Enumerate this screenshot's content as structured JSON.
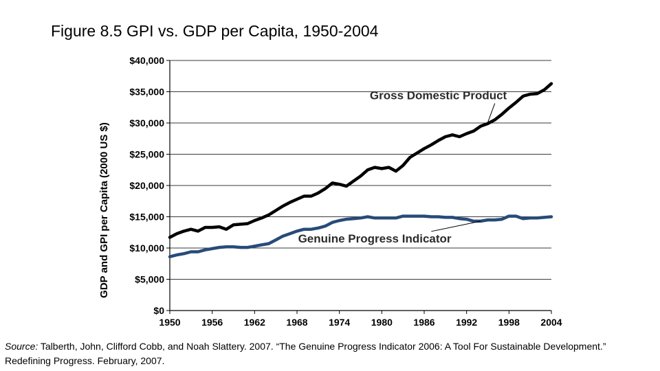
{
  "title": "Figure 8.5 GPI vs. GDP per Capita, 1950-2004",
  "source": {
    "label": "Source:",
    "text": " Talberth, John, Clifford Cobb, and Noah Slattery. 2007. “The Genuine Progress Indicator 2006: A Tool For Sustainable Development.” Redefining Progress. February, 2007."
  },
  "chart_data": {
    "type": "line",
    "title": "",
    "xlabel": "",
    "ylabel": "GDP and GPI per Capita (2000 US $)",
    "xlim": [
      1950,
      2004
    ],
    "ylim": [
      0,
      40000
    ],
    "grid": true,
    "x_ticks": [
      1950,
      1956,
      1962,
      1968,
      1974,
      1980,
      1986,
      1992,
      1998,
      2004
    ],
    "y_ticks": [
      {
        "value": 0,
        "label": "$0"
      },
      {
        "value": 5000,
        "label": "$5,000"
      },
      {
        "value": 10000,
        "label": "$10,000"
      },
      {
        "value": 15000,
        "label": "$15,000"
      },
      {
        "value": 20000,
        "label": "$20,000"
      },
      {
        "value": 25000,
        "label": "$25,000"
      },
      {
        "value": 30000,
        "label": "$30,000"
      },
      {
        "value": 35000,
        "label": "$35,000"
      },
      {
        "value": 40000,
        "label": "$40,000"
      }
    ],
    "x": [
      1950,
      1951,
      1952,
      1953,
      1954,
      1955,
      1956,
      1957,
      1958,
      1959,
      1960,
      1961,
      1962,
      1963,
      1964,
      1965,
      1966,
      1967,
      1968,
      1969,
      1970,
      1971,
      1972,
      1973,
      1974,
      1975,
      1976,
      1977,
      1978,
      1979,
      1980,
      1981,
      1982,
      1983,
      1984,
      1985,
      1986,
      1987,
      1988,
      1989,
      1990,
      1991,
      1992,
      1993,
      1994,
      1995,
      1996,
      1997,
      1998,
      1999,
      2000,
      2001,
      2002,
      2003,
      2004
    ],
    "series": [
      {
        "name": "Gross Domestic Product",
        "color": "#000000",
        "values": [
          11700,
          12300,
          12700,
          13000,
          12700,
          13300,
          13300,
          13400,
          13000,
          13700,
          13800,
          13900,
          14400,
          14800,
          15300,
          16000,
          16700,
          17300,
          17800,
          18300,
          18300,
          18800,
          19500,
          20400,
          20200,
          19900,
          20700,
          21500,
          22500,
          22900,
          22700,
          22900,
          22300,
          23200,
          24500,
          25200,
          25900,
          26500,
          27200,
          27800,
          28100,
          27800,
          28300,
          28700,
          29500,
          29900,
          30500,
          31400,
          32400,
          33300,
          34300,
          34600,
          34700,
          35300,
          36300
        ],
        "label_position": {
          "year": 1988,
          "value": 33800
        },
        "leader_to": {
          "year": 1995,
          "value": 30100
        }
      },
      {
        "name": "Genuine Progress Indicator",
        "color": "#274b7a",
        "values": [
          8600,
          8900,
          9100,
          9400,
          9400,
          9700,
          9900,
          10100,
          10200,
          10200,
          10100,
          10100,
          10300,
          10500,
          10700,
          11300,
          11900,
          12300,
          12700,
          13000,
          13000,
          13200,
          13500,
          14100,
          14400,
          14600,
          14700,
          14800,
          15000,
          14800,
          14800,
          14800,
          14800,
          15100,
          15100,
          15100,
          15100,
          15000,
          15000,
          14900,
          14900,
          14700,
          14600,
          14300,
          14300,
          14500,
          14500,
          14600,
          15100,
          15100,
          14700,
          14800,
          14800,
          14900,
          15000
        ],
        "label_position": {
          "year": 1979,
          "value": 10900
        },
        "leader_to": {
          "year": 1994,
          "value": 14300
        }
      }
    ]
  }
}
